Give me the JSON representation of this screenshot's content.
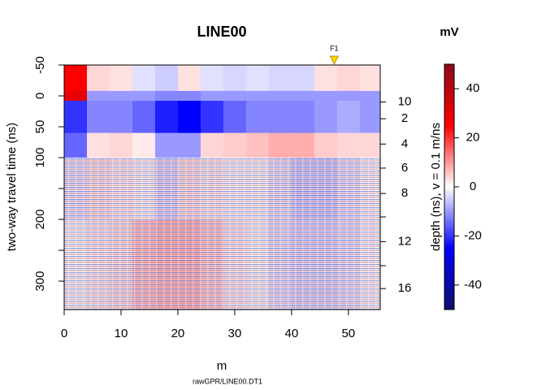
{
  "chart_data": {
    "type": "heatmap",
    "title": "LINE00",
    "xlabel": "m",
    "ylabel": "two-way travel time (ns)",
    "y2label": "depth (ns),   v = 0.1 m/ns",
    "caption": "rawGPR/LINE00.DT1",
    "colorbar_title": "mV",
    "xlim": [
      0,
      55.6
    ],
    "xticks": [
      0,
      10,
      20,
      30,
      40,
      50
    ],
    "ylim": [
      -50,
      346
    ],
    "y_reversed": true,
    "yticks": [
      -50,
      0,
      50,
      100,
      200,
      300
    ],
    "yticks_unlabeled": [
      150,
      250
    ],
    "y2ticks": [
      10,
      {
        "value": 37,
        "label": "2"
      },
      {
        "value": 78,
        "label": "4"
      },
      {
        "value": 117,
        "label": "6"
      },
      {
        "value": 158,
        "label": "8"
      },
      {
        "value": 236,
        "label": "12"
      },
      {
        "value": 312,
        "label": "16"
      }
    ],
    "y2ticks_unlabeled": [
      196,
      275
    ],
    "zlim": [
      -50,
      50
    ],
    "zticks": [
      -40,
      -20,
      0,
      20,
      40
    ],
    "colorscale": [
      "#10106a",
      "#0000ff",
      "#ffffff",
      "#ff0000",
      "#8b0a1a"
    ],
    "x_edges": [
      0,
      4,
      8,
      12,
      16,
      20,
      24,
      28,
      32,
      36,
      40,
      44,
      48,
      52,
      55.6
    ],
    "y_edges": [
      -50,
      -8,
      8,
      60,
      100,
      200,
      346
    ],
    "z": [
      [
        25,
        4,
        3,
        -3,
        -5,
        3,
        -3,
        -4,
        -3,
        -4,
        -4,
        3,
        4,
        3
      ],
      [
        30,
        -10,
        -10,
        -10,
        -12,
        -12,
        -10,
        -10,
        -10,
        -10,
        -10,
        -10,
        -10,
        -10
      ],
      [
        -20,
        -12,
        -12,
        -15,
        -22,
        -25,
        -20,
        -15,
        -12,
        -12,
        -12,
        -10,
        -8,
        -10
      ],
      [
        -15,
        3,
        4,
        2,
        -10,
        -10,
        4,
        5,
        6,
        8,
        8,
        5,
        4,
        4
      ],
      [
        -2,
        2,
        1,
        0,
        -3,
        2,
        1,
        0,
        0,
        -2,
        -4,
        -4,
        -2,
        0
      ],
      [
        0,
        1,
        2,
        5,
        6,
        6,
        4,
        1,
        0,
        -2,
        -3,
        -3,
        -2,
        0
      ]
    ],
    "markers": [
      {
        "label": "F1",
        "x": 47.5,
        "color": "#ffd700"
      }
    ]
  }
}
